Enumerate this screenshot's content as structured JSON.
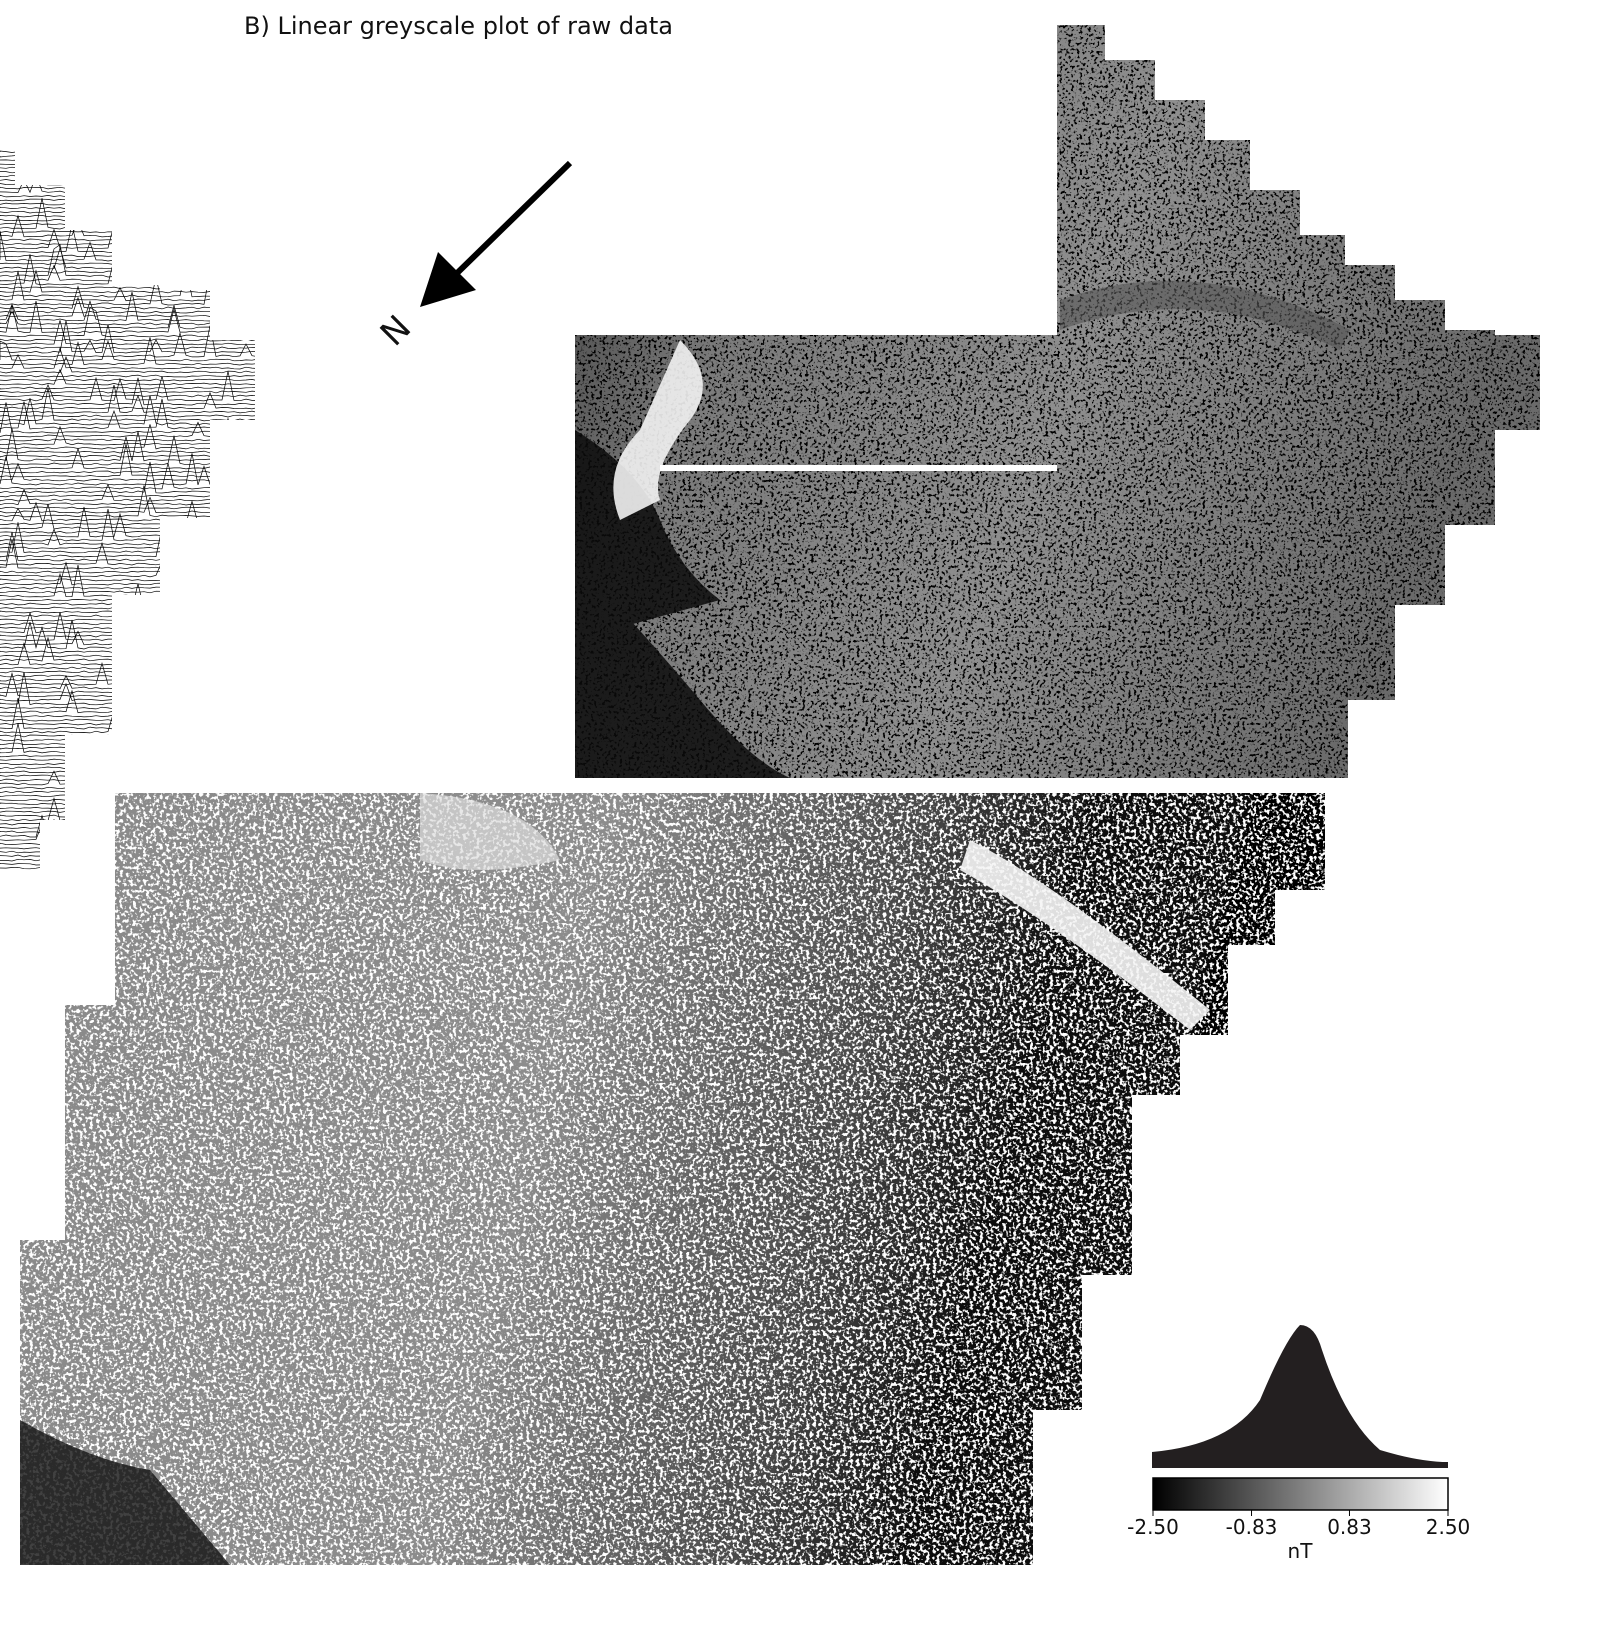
{
  "title": "B) Linear greyscale plot of raw data",
  "north_label": "N",
  "legend": {
    "unit": "nT",
    "ticks": [
      {
        "value": -2.5,
        "label": "-2.50"
      },
      {
        "value": -0.83,
        "label": "-0.83"
      },
      {
        "value": 0.83,
        "label": "0.83"
      },
      {
        "value": 2.5,
        "label": "2.50"
      }
    ]
  }
}
